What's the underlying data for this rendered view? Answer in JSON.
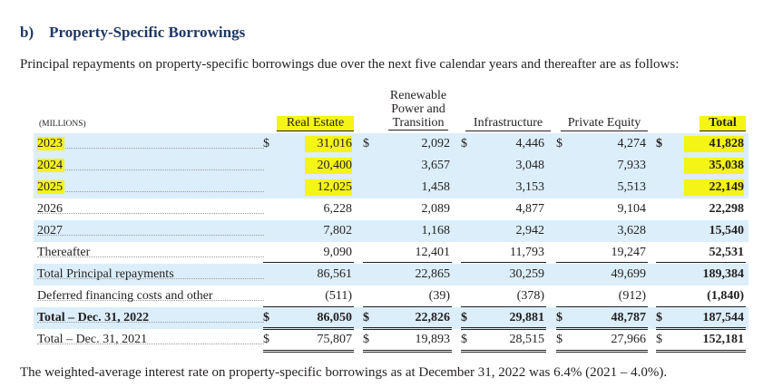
{
  "heading": "b) Property-Specific Borrowings",
  "intro": "Principal repayments on property-specific borrowings due over the next five calendar years and thereafter are as follows:",
  "unit_label": "(MILLIONS)",
  "renewable_header_lines": [
    "Renewable",
    "Power and",
    "Transition"
  ],
  "columns": [
    "Real Estate",
    "Infrastructure",
    "Private Equity",
    "Total"
  ],
  "currency_symbol": "$",
  "rows": [
    {
      "label": "2023",
      "values": [
        "31,016",
        "2,092",
        "4,446",
        "4,274",
        "41,828"
      ]
    },
    {
      "label": "2024",
      "values": [
        "20,400",
        "3,657",
        "3,048",
        "7,933",
        "35,038"
      ]
    },
    {
      "label": "2025",
      "values": [
        "12,025",
        "1,458",
        "3,153",
        "5,513",
        "22,149"
      ]
    },
    {
      "label": "2026",
      "values": [
        "6,228",
        "2,089",
        "4,877",
        "9,104",
        "22,298"
      ]
    },
    {
      "label": "2027",
      "values": [
        "7,802",
        "1,168",
        "2,942",
        "3,628",
        "15,540"
      ]
    },
    {
      "label": "Thereafter",
      "values": [
        "9,090",
        "12,401",
        "11,793",
        "19,247",
        "52,531"
      ]
    },
    {
      "label": "Total Principal repayments",
      "values": [
        "86,561",
        "22,865",
        "30,259",
        "49,699",
        "189,384"
      ]
    },
    {
      "label": "Deferred financing costs and other",
      "values": [
        "(511)",
        "(39)",
        "(378)",
        "(912)",
        "(1,840)"
      ]
    },
    {
      "label": "Total – Dec. 31, 2022",
      "values": [
        "86,050",
        "22,826",
        "29,881",
        "48,787",
        "187,544"
      ]
    },
    {
      "label": "Total – Dec. 31, 2021",
      "values": [
        "75,807",
        "19,893",
        "28,515",
        "27,966",
        "152,181"
      ]
    }
  ],
  "colors": {
    "highlight": "#f4f416",
    "band": "#dbeefa",
    "heading": "#1f3864"
  },
  "footnote": "The weighted-average interest rate on property-specific borrowings as at December 31, 2022 was 6.4% (2021 – 4.0%)."
}
